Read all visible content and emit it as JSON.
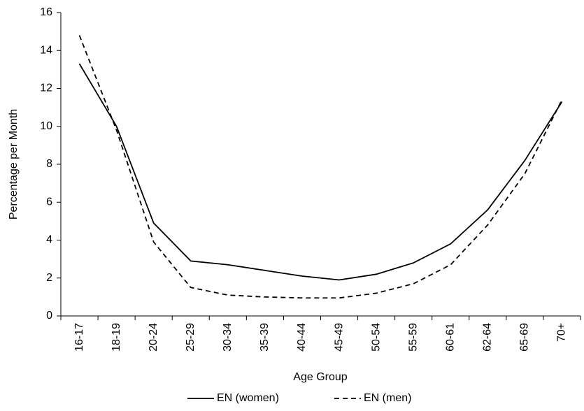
{
  "chart_data": {
    "type": "line",
    "x_label": "Age Group",
    "y_label": "Percentage per Month",
    "categories": [
      "16-17",
      "18-19",
      "20-24",
      "25-29",
      "30-34",
      "35-39",
      "40-44",
      "45-49",
      "50-54",
      "55-59",
      "60-61",
      "62-64",
      "65-69",
      "70+"
    ],
    "series": [
      {
        "name": "EN (women)",
        "color": "#000000",
        "line_style": "solid",
        "values": [
          13.3,
          10.0,
          4.9,
          2.9,
          2.7,
          2.4,
          2.1,
          1.9,
          2.2,
          2.8,
          3.8,
          5.6,
          8.2,
          11.3
        ]
      },
      {
        "name": "EN (men)",
        "color": "#000000",
        "line_style": "dashed",
        "values": [
          14.8,
          9.8,
          3.9,
          1.5,
          1.1,
          1.0,
          0.95,
          0.95,
          1.2,
          1.7,
          2.7,
          4.8,
          7.5,
          11.4
        ]
      }
    ],
    "ylim": [
      0,
      16
    ],
    "yticks": [
      0,
      2,
      4,
      6,
      8,
      10,
      12,
      14,
      16
    ],
    "grid": false,
    "legend": "bottom"
  }
}
